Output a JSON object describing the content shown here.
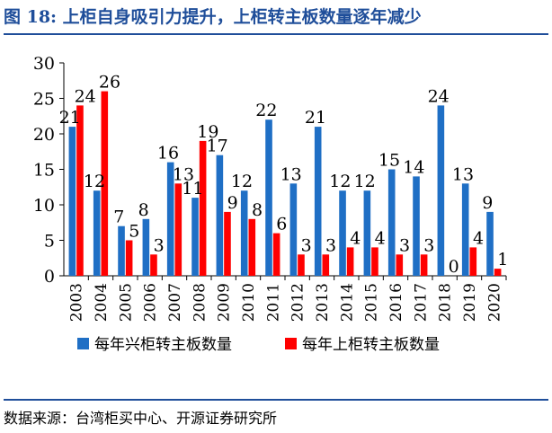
{
  "figure": {
    "title": "图 18:  上柜自身吸引力提升，上柜转主板数量逐年减少",
    "source": "数据来源：台湾柜买中心、开源证券研究所"
  },
  "colors": {
    "title": "#1f4e9a",
    "series_emerging": "#1f6fc5",
    "series_otc": "#ff0000"
  },
  "chart_data": {
    "type": "bar",
    "title": "",
    "xlabel": "",
    "ylabel": "",
    "ylim": [
      0,
      30
    ],
    "yticks": [
      0,
      5,
      10,
      15,
      20,
      25,
      30
    ],
    "categories": [
      "2003",
      "2004",
      "2005",
      "2006",
      "2007",
      "2008",
      "2009",
      "2010",
      "2011",
      "2012",
      "2013",
      "2014",
      "2015",
      "2016",
      "2017",
      "2018",
      "2019",
      "2020"
    ],
    "series": [
      {
        "name": "每年兴柜转主板数量",
        "values": [
          21,
          12,
          7,
          8,
          16,
          11,
          17,
          12,
          22,
          13,
          21,
          12,
          12,
          15,
          14,
          24,
          13,
          9
        ]
      },
      {
        "name": "每年上柜转主板数量",
        "values": [
          24,
          26,
          5,
          3,
          13,
          19,
          9,
          8,
          6,
          3,
          3,
          4,
          4,
          3,
          3,
          0,
          4,
          1
        ]
      }
    ],
    "legend_position": "bottom"
  }
}
